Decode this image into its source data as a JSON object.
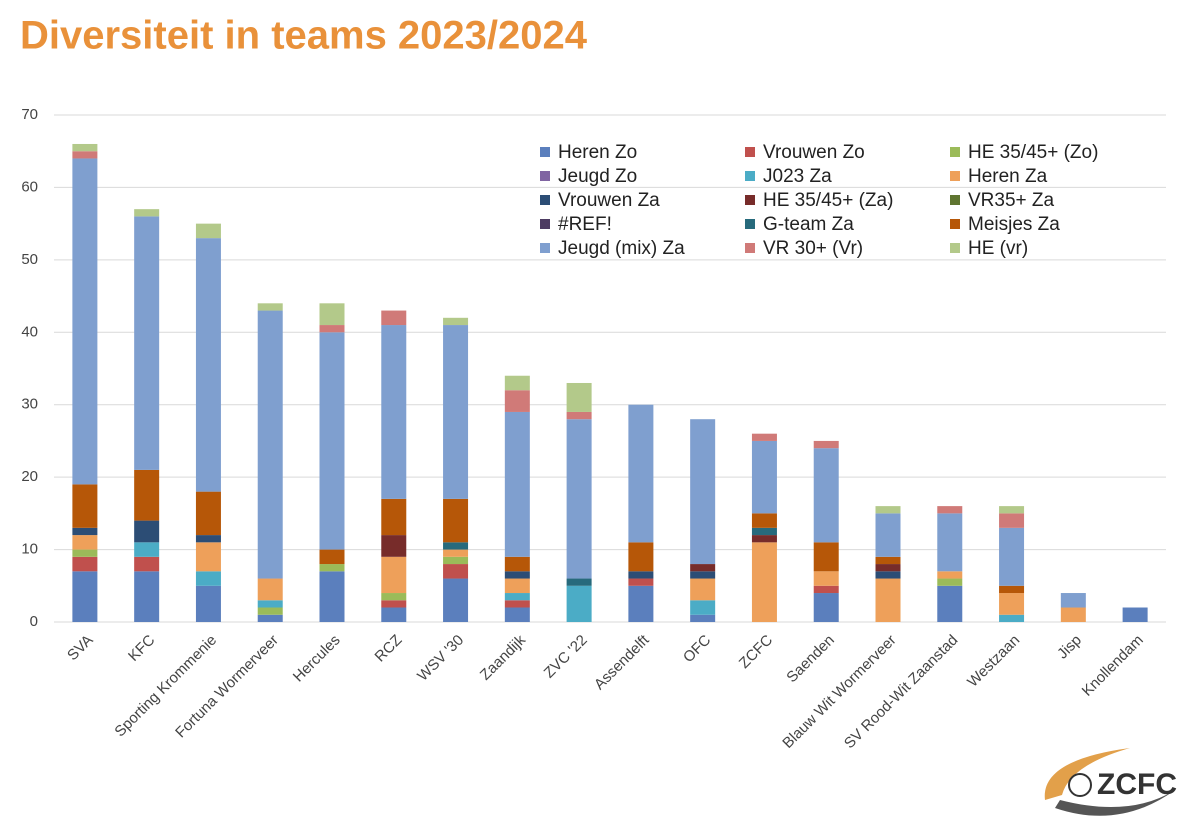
{
  "chart_data": {
    "type": "stacked_bar",
    "title": "Diversiteit in teams 2023/2024",
    "categories": [
      "SVA",
      "KFC",
      "Sporting Krommenie",
      "Fortuna Wormerveer",
      "Hercules",
      "RCZ",
      "WSV '30",
      "Zaandijk",
      "ZVC '22",
      "Assendelft",
      "OFC",
      "ZCFC",
      "Saenden",
      "Blauw Wit Wormerveer",
      "SV Rood-Wit Zaanstad",
      "Westzaan",
      "Jisp",
      "Knollendam"
    ],
    "series": [
      {
        "name": "Heren Zo",
        "color": "#5b7fbd",
        "values": [
          7,
          7,
          5,
          1,
          7,
          2,
          6,
          2,
          0,
          5,
          1,
          0,
          4,
          0,
          5,
          0,
          0,
          2
        ]
      },
      {
        "name": "Vrouwen Zo",
        "color": "#c0504d",
        "values": [
          2,
          2,
          0,
          0,
          0,
          1,
          2,
          1,
          0,
          1,
          0,
          0,
          1,
          0,
          0,
          0,
          0,
          0
        ]
      },
      {
        "name": "HE 35/45+ (Zo)",
        "color": "#9bbb59",
        "values": [
          1,
          0,
          0,
          1,
          1,
          1,
          1,
          0,
          0,
          0,
          0,
          0,
          0,
          0,
          1,
          0,
          0,
          0
        ]
      },
      {
        "name": "Jeugd Zo",
        "color": "#8064a2",
        "values": [
          0,
          0,
          0,
          0,
          0,
          0,
          0,
          0,
          0,
          0,
          0,
          0,
          0,
          0,
          0,
          0,
          0,
          0
        ]
      },
      {
        "name": "J023 Za",
        "color": "#4bacc6",
        "values": [
          0,
          2,
          2,
          1,
          0,
          0,
          0,
          1,
          5,
          0,
          2,
          0,
          0,
          0,
          0,
          1,
          0,
          0
        ]
      },
      {
        "name": "Heren Za",
        "color": "#eea05a",
        "values": [
          2,
          0,
          4,
          3,
          0,
          5,
          1,
          2,
          0,
          0,
          3,
          11,
          2,
          6,
          1,
          3,
          2,
          0
        ]
      },
      {
        "name": "Vrouwen Za",
        "color": "#2c4d75",
        "values": [
          1,
          3,
          1,
          0,
          0,
          0,
          0,
          1,
          0,
          1,
          1,
          0,
          0,
          1,
          0,
          0,
          0,
          0
        ]
      },
      {
        "name": "HE 35/45+ (Za)",
        "color": "#772c2a",
        "values": [
          0,
          0,
          0,
          0,
          0,
          3,
          0,
          0,
          0,
          0,
          1,
          1,
          0,
          1,
          0,
          0,
          0,
          0
        ]
      },
      {
        "name": "VR35+ Za",
        "color": "#5f7530",
        "values": [
          0,
          0,
          0,
          0,
          0,
          0,
          0,
          0,
          0,
          0,
          0,
          0,
          0,
          0,
          0,
          0,
          0,
          0
        ]
      },
      {
        "name": "#REF!",
        "color": "#4d3b62",
        "values": [
          0,
          0,
          0,
          0,
          0,
          0,
          0,
          0,
          0,
          0,
          0,
          0,
          0,
          0,
          0,
          0,
          0,
          0
        ]
      },
      {
        "name": "G-team Za",
        "color": "#276a7c",
        "values": [
          0,
          0,
          0,
          0,
          0,
          0,
          1,
          0,
          1,
          0,
          0,
          1,
          0,
          0,
          0,
          0,
          0,
          0
        ]
      },
      {
        "name": "Meisjes Za",
        "color": "#b65708",
        "values": [
          6,
          7,
          6,
          0,
          2,
          5,
          6,
          2,
          0,
          4,
          0,
          2,
          4,
          1,
          0,
          1,
          0,
          0
        ]
      },
      {
        "name": "Jeugd (mix) Za",
        "color": "#7f9fcf",
        "values": [
          45,
          35,
          35,
          37,
          30,
          24,
          24,
          20,
          22,
          19,
          20,
          10,
          13,
          6,
          8,
          8,
          2,
          0
        ]
      },
      {
        "name": "VR 30+ (Vr)",
        "color": "#d07a78",
        "values": [
          1,
          0,
          0,
          0,
          1,
          2,
          0,
          3,
          1,
          0,
          0,
          1,
          1,
          0,
          1,
          2,
          0,
          0
        ]
      },
      {
        "name": "HE (vr)",
        "color": "#b3c98a",
        "values": [
          1,
          1,
          2,
          1,
          3,
          0,
          1,
          2,
          4,
          0,
          0,
          0,
          0,
          1,
          0,
          1,
          0,
          0
        ]
      }
    ],
    "ylim": [
      0,
      70
    ],
    "yticks": [
      0,
      10,
      20,
      30,
      40,
      50,
      60,
      70
    ],
    "grid": true,
    "legend": "top-right"
  },
  "logo": {
    "text": "ZCFC"
  }
}
